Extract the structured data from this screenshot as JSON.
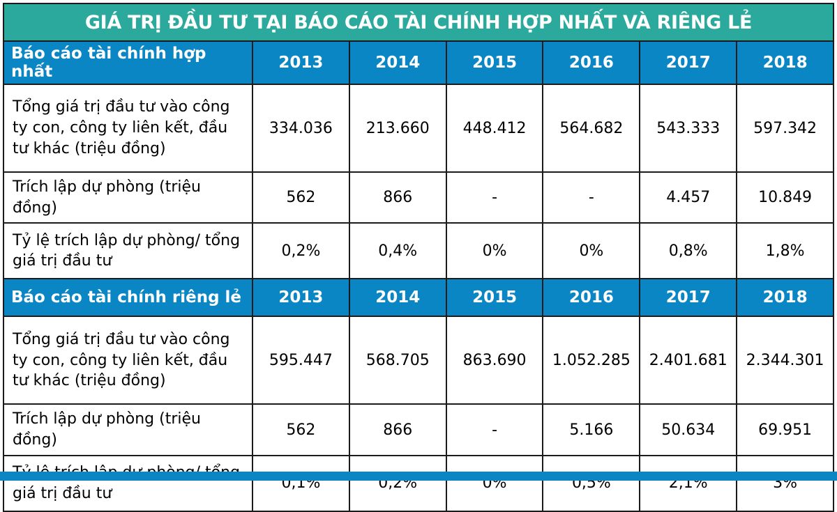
{
  "colors": {
    "teal": "#2BA99C",
    "blue": "#0B86C5",
    "border": "#1b1b1b",
    "header_text": "#FFFFFF",
    "body_text": "#000000",
    "background": "#FFFFFF"
  },
  "chart_data": {
    "type": "table",
    "title": "GIÁ TRỊ ĐẦU TƯ TẠI BÁO CÁO TÀI CHÍNH HỢP NHẤT VÀ RIÊNG LẺ",
    "sections": [
      {
        "header": "Báo cáo tài chính hợp nhất",
        "years": [
          "2013",
          "2014",
          "2015",
          "2016",
          "2017",
          "2018"
        ],
        "rows": [
          {
            "label": "Tổng giá trị đầu tư vào công ty con, công ty liên kết, đầu tư khác (triệu đồng)",
            "values": [
              "334.036",
              "213.660",
              "448.412",
              "564.682",
              "543.333",
              "597.342"
            ]
          },
          {
            "label": "Trích lập dự phòng (triệu đồng)",
            "values": [
              "562",
              "866",
              "-",
              "-",
              "4.457",
              "10.849"
            ]
          },
          {
            "label": "Tỷ lệ trích lập dự phòng/ tổng giá trị đầu tư",
            "values": [
              "0,2%",
              "0,4%",
              "0%",
              "0%",
              "0,8%",
              "1,8%"
            ]
          }
        ]
      },
      {
        "header": "Báo cáo tài chính riêng lẻ",
        "years": [
          "2013",
          "2014",
          "2015",
          "2016",
          "2017",
          "2018"
        ],
        "rows": [
          {
            "label": "Tổng giá trị đầu tư vào công ty con, công ty liên kết, đầu tư khác (triệu đồng)",
            "values": [
              "595.447",
              "568.705",
              "863.690",
              "1.052.285",
              "2.401.681",
              "2.344.301"
            ]
          },
          {
            "label": "Trích lập dự phòng (triệu đồng)",
            "values": [
              "562",
              "866",
              "-",
              "5.166",
              "50.634",
              "69.951"
            ]
          },
          {
            "label": "Tỷ lệ trích lập dự phòng/ tổng giá trị đầu tư",
            "values": [
              "0,1%",
              "0,2%",
              "0%",
              "0,5%",
              "2,1%",
              "3%"
            ]
          }
        ]
      }
    ]
  }
}
